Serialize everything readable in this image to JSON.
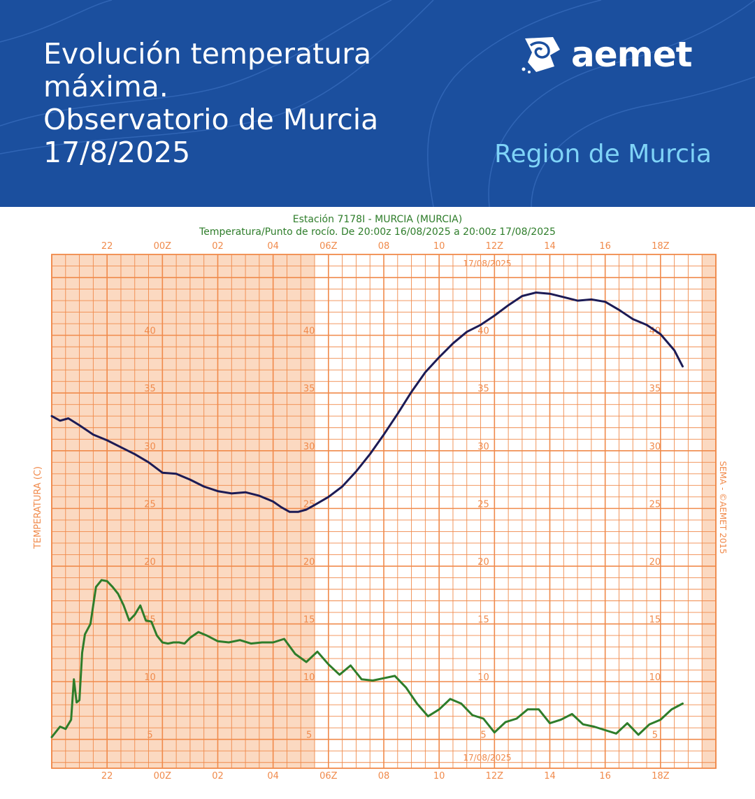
{
  "header": {
    "title_lines": [
      "Evolución temperatura",
      "máxima.",
      "Observatorio de Murcia",
      "17/8/2025"
    ],
    "region": "Region de Murcia",
    "logo_text": "aemet"
  },
  "colors": {
    "header_bg": "#1b4f9e",
    "region_text": "#7fd3f7",
    "grid": "#f08a4b",
    "night_shade": "#fbd9c1",
    "temperature_line": "#1c1b55",
    "dewpoint_line": "#2e7d2a",
    "chart_title": "#2e7d2a"
  },
  "chart_data": {
    "type": "line",
    "title": "Estación 7178I - MURCIA (MURCIA)",
    "subtitle": "Temperatura/Punto de rocío. De 20:00z 16/08/2025 a 20:00z 17/08/2025",
    "ylabel": "TEMPERATURA (C)",
    "right_label": "SEMA - ©AEMET 2015",
    "date_label": "17/08/2025",
    "x_unit": "hours since 20:00z 16/08/2025",
    "x_tick_labels": [
      {
        "x": 2,
        "label": "22"
      },
      {
        "x": 4,
        "label": "00Z"
      },
      {
        "x": 6,
        "label": "02"
      },
      {
        "x": 8,
        "label": "04"
      },
      {
        "x": 10,
        "label": "06Z"
      },
      {
        "x": 12,
        "label": "08"
      },
      {
        "x": 14,
        "label": "10"
      },
      {
        "x": 16,
        "label": "12Z"
      },
      {
        "x": 18,
        "label": "14"
      },
      {
        "x": 20,
        "label": "16"
      },
      {
        "x": 22,
        "label": "18Z"
      }
    ],
    "y_tick_labels": [
      5,
      10,
      15,
      20,
      25,
      30,
      35,
      40
    ],
    "xlim": [
      0,
      24
    ],
    "ylim": [
      2.5,
      47
    ],
    "shaded_x_ranges": [
      [
        0,
        9.5
      ],
      [
        23.5,
        24
      ]
    ],
    "grid": true,
    "series": [
      {
        "name": "Temperatura",
        "x": [
          0,
          0.3,
          0.6,
          1,
          1.5,
          2,
          2.5,
          3,
          3.5,
          4,
          4.5,
          5,
          5.5,
          6,
          6.5,
          7,
          7.5,
          8,
          8.3,
          8.6,
          8.9,
          9.2,
          9.5,
          10,
          10.5,
          11,
          11.5,
          12,
          12.5,
          13,
          13.5,
          14,
          14.5,
          15,
          15.5,
          16,
          16.5,
          17,
          17.5,
          18,
          18.5,
          19,
          19.5,
          20,
          20.5,
          21,
          21.5,
          22,
          22.5,
          22.8
        ],
        "values": [
          33,
          32.6,
          32.8,
          32.2,
          31.4,
          30.9,
          30.3,
          29.7,
          29.0,
          28.1,
          28.0,
          27.5,
          26.9,
          26.5,
          26.3,
          26.4,
          26.1,
          25.6,
          25.1,
          24.7,
          24.7,
          24.9,
          25.3,
          26.0,
          26.9,
          28.2,
          29.7,
          31.4,
          33.2,
          35.1,
          36.8,
          38.1,
          39.3,
          40.3,
          40.9,
          41.7,
          42.6,
          43.4,
          43.7,
          43.6,
          43.3,
          43.0,
          43.1,
          42.9,
          42.2,
          41.4,
          40.9,
          40.1,
          38.7,
          37.3
        ]
      },
      {
        "name": "Punto de rocío",
        "x": [
          0,
          0.3,
          0.5,
          0.7,
          0.8,
          0.9,
          1,
          1.1,
          1.2,
          1.4,
          1.6,
          1.8,
          2,
          2.2,
          2.4,
          2.6,
          2.8,
          3,
          3.2,
          3.4,
          3.6,
          3.8,
          4,
          4.2,
          4.4,
          4.6,
          4.8,
          5,
          5.3,
          5.6,
          6,
          6.4,
          6.8,
          7.2,
          7.6,
          8,
          8.4,
          8.8,
          9.2,
          9.6,
          10,
          10.4,
          10.8,
          11.2,
          11.6,
          12,
          12.4,
          12.8,
          13.2,
          13.6,
          14,
          14.4,
          14.8,
          15.2,
          15.6,
          16,
          16.4,
          16.8,
          17.2,
          17.6,
          18,
          18.4,
          18.8,
          19.2,
          19.6,
          20,
          20.4,
          20.8,
          21.2,
          21.6,
          22,
          22.4,
          22.8
        ],
        "values": [
          5.2,
          6.1,
          5.9,
          6.7,
          10.2,
          8.2,
          8.4,
          12.5,
          14.1,
          15.0,
          18.2,
          18.8,
          18.7,
          18.2,
          17.6,
          16.6,
          15.3,
          15.8,
          16.6,
          15.3,
          15.2,
          14.0,
          13.4,
          13.3,
          13.4,
          13.4,
          13.3,
          13.8,
          14.3,
          14.0,
          13.5,
          13.4,
          13.6,
          13.3,
          13.4,
          13.4,
          13.7,
          12.4,
          11.7,
          12.6,
          11.5,
          10.6,
          11.4,
          10.2,
          10.1,
          10.3,
          10.5,
          9.5,
          8.1,
          7.0,
          7.6,
          8.5,
          8.1,
          7.1,
          6.8,
          5.6,
          6.5,
          6.8,
          7.6,
          7.6,
          6.4,
          6.7,
          7.2,
          6.3,
          6.1,
          5.8,
          5.5,
          6.4,
          5.4,
          6.3,
          6.7,
          7.6,
          8.1
        ]
      }
    ]
  }
}
